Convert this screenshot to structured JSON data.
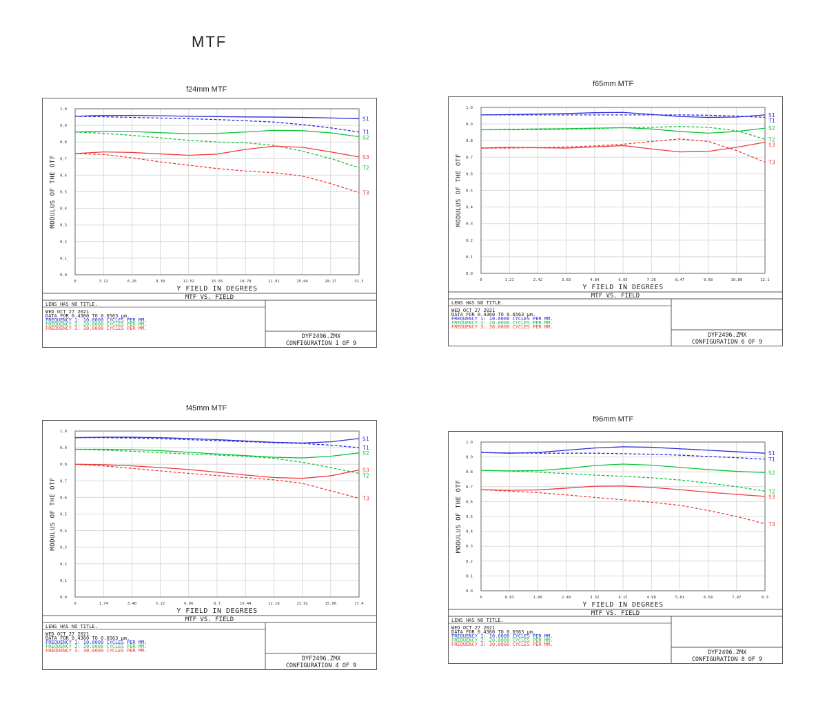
{
  "page": {
    "title": "MTF"
  },
  "chart_data": [
    {
      "type": "line",
      "title": "f24mm MTF",
      "xlabel": "Y FIELD IN DEGREES",
      "ylabel": "MODULUS OF THE OTF",
      "ylim": [
        0,
        1
      ],
      "xlim": [
        0,
        31.3
      ],
      "xticks": [
        "0",
        "3.12",
        "6.26",
        "9.39",
        "12.52",
        "15.65",
        "18.78",
        "21.91",
        "25.04",
        "28.17",
        "31.3"
      ],
      "yticks": [
        "0.0",
        "0.1",
        "0.2",
        "0.3",
        "0.4",
        "0.5",
        "0.6",
        "0.7",
        "0.8",
        "0.9",
        "1.0"
      ],
      "grid": true,
      "x": [
        0,
        3.13,
        6.26,
        9.39,
        12.52,
        15.65,
        18.78,
        21.91,
        25.04,
        28.17,
        31.3
      ],
      "series": [
        {
          "name": "S1",
          "color": "#2b2bd8",
          "dashed": false,
          "values": [
            0.955,
            0.96,
            0.96,
            0.958,
            0.955,
            0.953,
            0.951,
            0.95,
            0.948,
            0.945,
            0.94
          ]
        },
        {
          "name": "T1",
          "color": "#2b2bd8",
          "dashed": true,
          "values": [
            0.955,
            0.952,
            0.948,
            0.944,
            0.94,
            0.935,
            0.928,
            0.92,
            0.905,
            0.885,
            0.86
          ]
        },
        {
          "name": "S2",
          "color": "#12c33a",
          "dashed": false,
          "values": [
            0.86,
            0.865,
            0.863,
            0.856,
            0.85,
            0.852,
            0.86,
            0.87,
            0.868,
            0.855,
            0.832
          ]
        },
        {
          "name": "T2",
          "color": "#12c33a",
          "dashed": true,
          "values": [
            0.86,
            0.852,
            0.84,
            0.825,
            0.81,
            0.8,
            0.795,
            0.78,
            0.745,
            0.7,
            0.645
          ]
        },
        {
          "name": "S3",
          "color": "#ee3b3b",
          "dashed": false,
          "values": [
            0.73,
            0.74,
            0.737,
            0.728,
            0.72,
            0.727,
            0.755,
            0.775,
            0.768,
            0.74,
            0.71
          ]
        },
        {
          "name": "T3",
          "color": "#ee3b3b",
          "dashed": true,
          "values": [
            0.73,
            0.725,
            0.705,
            0.68,
            0.66,
            0.64,
            0.625,
            0.615,
            0.595,
            0.55,
            0.495
          ]
        }
      ],
      "plot_title": "MTF VS. FIELD",
      "info": {
        "line1": "LENS HAS NO TITLE.",
        "line2": "WED OCT 27 2021",
        "line3": "DATA FOR 0.4360 TO 0.6563 μm.",
        "freq1": "FREQUENCY 1:  10.0000 CYCLES PER MM.",
        "freq2": "FREQUENCY 2:  20.0000 CYCLES PER MM.",
        "freq3": "FREQUENCY 3:  30.0000 CYCLES PER MM.",
        "file": "DYF2496.ZMX",
        "config": "CONFIGURATION 1 OF 9"
      }
    },
    {
      "type": "line",
      "title": "f65mm MTF",
      "xlabel": "Y FIELD IN DEGREES",
      "ylabel": "MODULUS OF THE OTF",
      "ylim": [
        0,
        1
      ],
      "xlim": [
        0,
        12.1
      ],
      "xticks": [
        "0",
        "1.21",
        "2.42",
        "3.63",
        "4.84",
        "6.05",
        "7.26",
        "8.47",
        "9.68",
        "10.89",
        "12.1"
      ],
      "yticks": [
        "0.0",
        "0.1",
        "0.2",
        "0.3",
        "0.4",
        "0.5",
        "0.6",
        "0.7",
        "0.8",
        "0.9",
        "1.0"
      ],
      "grid": true,
      "x": [
        0,
        1.21,
        2.42,
        3.63,
        4.84,
        6.05,
        7.26,
        8.47,
        9.68,
        10.89,
        12.1
      ],
      "series": [
        {
          "name": "S1",
          "color": "#2b2bd8",
          "dashed": false,
          "values": [
            0.955,
            0.957,
            0.96,
            0.963,
            0.968,
            0.97,
            0.958,
            0.945,
            0.94,
            0.942,
            0.955
          ]
        },
        {
          "name": "T1",
          "color": "#2b2bd8",
          "dashed": true,
          "values": [
            0.955,
            0.955,
            0.955,
            0.955,
            0.955,
            0.955,
            0.955,
            0.955,
            0.953,
            0.948,
            0.94
          ]
        },
        {
          "name": "S2",
          "color": "#12c33a",
          "dashed": false,
          "values": [
            0.865,
            0.868,
            0.87,
            0.872,
            0.875,
            0.878,
            0.87,
            0.855,
            0.845,
            0.855,
            0.875
          ]
        },
        {
          "name": "T2",
          "color": "#12c33a",
          "dashed": true,
          "values": [
            0.865,
            0.865,
            0.866,
            0.868,
            0.872,
            0.878,
            0.88,
            0.885,
            0.88,
            0.86,
            0.808
          ]
        },
        {
          "name": "S3",
          "color": "#ee3b3b",
          "dashed": false,
          "values": [
            0.755,
            0.76,
            0.757,
            0.755,
            0.762,
            0.77,
            0.75,
            0.732,
            0.735,
            0.76,
            0.79
          ]
        },
        {
          "name": "T3",
          "color": "#ee3b3b",
          "dashed": true,
          "values": [
            0.755,
            0.755,
            0.758,
            0.762,
            0.768,
            0.778,
            0.795,
            0.81,
            0.795,
            0.74,
            0.67
          ]
        }
      ],
      "plot_title": "MTF VS. FIELD",
      "info": {
        "line1": "LENS HAS NO TITLE.",
        "line2": "WED OCT 27 2021",
        "line3": "DATA FOR 0.4360 TO 0.6563 μm.",
        "freq1": "FREQUENCY 1:  10.0000 CYCLES PER MM.",
        "freq2": "FREQUENCY 2:  20.0000 CYCLES PER MM.",
        "freq3": "FREQUENCY 3:  30.0000 CYCLES PER MM.",
        "file": "DYF2496.ZMX",
        "config": "CONFIGURATION 6 OF 9"
      }
    },
    {
      "type": "line",
      "title": "f45mm MTF",
      "xlabel": "Y FIELD IN DEGREES",
      "ylabel": "MODULUS OF THE OTF",
      "ylim": [
        0,
        1
      ],
      "xlim": [
        0,
        17.4
      ],
      "xticks": [
        "0",
        "1.74",
        "3.48",
        "5.22",
        "6.96",
        "8.7",
        "10.44",
        "12.18",
        "13.92",
        "15.66",
        "17.4"
      ],
      "yticks": [
        "0.0",
        "0.1",
        "0.2",
        "0.3",
        "0.4",
        "0.5",
        "0.6",
        "0.7",
        "0.8",
        "0.9",
        "1.0"
      ],
      "grid": true,
      "x": [
        0,
        1.74,
        3.48,
        5.22,
        6.96,
        8.7,
        10.44,
        12.18,
        13.92,
        15.66,
        17.4
      ],
      "series": [
        {
          "name": "S1",
          "color": "#2b2bd8",
          "dashed": false,
          "values": [
            0.96,
            0.963,
            0.963,
            0.96,
            0.955,
            0.948,
            0.94,
            0.932,
            0.928,
            0.935,
            0.955
          ]
        },
        {
          "name": "T1",
          "color": "#2b2bd8",
          "dashed": true,
          "values": [
            0.96,
            0.96,
            0.958,
            0.954,
            0.948,
            0.942,
            0.936,
            0.93,
            0.925,
            0.915,
            0.9
          ]
        },
        {
          "name": "S2",
          "color": "#12c33a",
          "dashed": false,
          "values": [
            0.89,
            0.89,
            0.888,
            0.882,
            0.872,
            0.862,
            0.852,
            0.842,
            0.838,
            0.848,
            0.868
          ]
        },
        {
          "name": "T2",
          "color": "#12c33a",
          "dashed": true,
          "values": [
            0.89,
            0.885,
            0.878,
            0.87,
            0.862,
            0.855,
            0.848,
            0.836,
            0.812,
            0.78,
            0.745
          ]
        },
        {
          "name": "S3",
          "color": "#ee3b3b",
          "dashed": false,
          "values": [
            0.8,
            0.797,
            0.79,
            0.78,
            0.768,
            0.752,
            0.735,
            0.72,
            0.715,
            0.73,
            0.765
          ]
        },
        {
          "name": "T3",
          "color": "#ee3b3b",
          "dashed": true,
          "values": [
            0.8,
            0.79,
            0.775,
            0.76,
            0.745,
            0.732,
            0.72,
            0.706,
            0.685,
            0.64,
            0.595
          ]
        }
      ],
      "plot_title": "MTF VS. FIELD",
      "info": {
        "line1": "LENS HAS NO TITLE.",
        "line2": "WED OCT 27 2021",
        "line3": "DATA FOR 0.4360 TO 0.6563 μm.",
        "freq1": "FREQUENCY 1:  10.0000 CYCLES PER MM.",
        "freq2": "FREQUENCY 2:  20.0000 CYCLES PER MM.",
        "freq3": "FREQUENCY 3:  30.0000 CYCLES PER MM.",
        "file": "DYF2496.ZMX",
        "config": "CONFIGURATION 4 OF 9"
      }
    },
    {
      "type": "line",
      "title": "f96mm MTF",
      "xlabel": "Y FIELD IN DEGREES",
      "ylabel": "MODULUS OF THE OTF",
      "ylim": [
        0,
        1
      ],
      "xlim": [
        0,
        8.3
      ],
      "xticks": [
        "0",
        "0.83",
        "1.66",
        "2.49",
        "3.32",
        "4.15",
        "4.98",
        "5.81",
        "6.64",
        "7.47",
        "8.3"
      ],
      "yticks": [
        "0.0",
        "0.1",
        "0.2",
        "0.3",
        "0.4",
        "0.5",
        "0.6",
        "0.7",
        "0.8",
        "0.9",
        "1.0"
      ],
      "grid": true,
      "x": [
        0,
        0.83,
        1.66,
        2.49,
        3.32,
        4.15,
        4.98,
        5.81,
        6.64,
        7.47,
        8.3
      ],
      "series": [
        {
          "name": "S1",
          "color": "#2b2bd8",
          "dashed": false,
          "values": [
            0.93,
            0.925,
            0.93,
            0.945,
            0.96,
            0.968,
            0.965,
            0.955,
            0.945,
            0.935,
            0.925
          ]
        },
        {
          "name": "T1",
          "color": "#2b2bd8",
          "dashed": true,
          "values": [
            0.93,
            0.927,
            0.925,
            0.925,
            0.925,
            0.922,
            0.918,
            0.912,
            0.903,
            0.895,
            0.885
          ]
        },
        {
          "name": "S2",
          "color": "#12c33a",
          "dashed": false,
          "values": [
            0.81,
            0.806,
            0.808,
            0.822,
            0.842,
            0.852,
            0.845,
            0.83,
            0.815,
            0.803,
            0.795
          ]
        },
        {
          "name": "T2",
          "color": "#12c33a",
          "dashed": true,
          "values": [
            0.81,
            0.805,
            0.798,
            0.788,
            0.778,
            0.77,
            0.76,
            0.745,
            0.725,
            0.7,
            0.67
          ]
        },
        {
          "name": "S3",
          "color": "#ee3b3b",
          "dashed": false,
          "values": [
            0.68,
            0.676,
            0.678,
            0.69,
            0.703,
            0.705,
            0.695,
            0.68,
            0.663,
            0.648,
            0.635
          ]
        },
        {
          "name": "T3",
          "color": "#ee3b3b",
          "dashed": true,
          "values": [
            0.68,
            0.67,
            0.66,
            0.645,
            0.628,
            0.612,
            0.595,
            0.575,
            0.54,
            0.5,
            0.45
          ]
        }
      ],
      "plot_title": "MTF VS. FIELD",
      "info": {
        "line1": "LENS HAS NO TITLE.",
        "line2": "WED OCT 27 2021",
        "line3": "DATA FOR 0.4360 TO 0.6563 μm.",
        "freq1": "FREQUENCY 1:  10.0000 CYCLES PER MM.",
        "freq2": "FREQUENCY 2:  20.0000 CYCLES PER MM.",
        "freq3": "FREQUENCY 3:  30.0000 CYCLES PER MM.",
        "file": "DYF2496.ZMX",
        "config": "CONFIGURATION 8 OF 9"
      }
    }
  ]
}
